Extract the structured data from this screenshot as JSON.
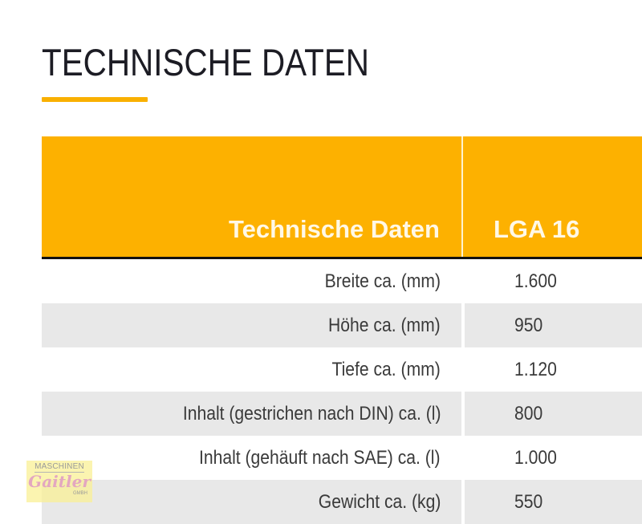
{
  "page": {
    "title": "TECHNISCHE DATEN",
    "accent_color": "#FDB100"
  },
  "table": {
    "headers": {
      "label": "Technische Daten",
      "model": "LGA 16"
    },
    "rows": [
      {
        "label": "Breite ca. (mm)",
        "value": "1.600"
      },
      {
        "label": "Höhe ca. (mm)",
        "value": "950"
      },
      {
        "label": "Tiefe ca. (mm)",
        "value": "1.120"
      },
      {
        "label": "Inhalt (gestrichen nach DIN) ca. (l)",
        "value": "800"
      },
      {
        "label": "Inhalt (gehäuft nach SAE) ca. (l)",
        "value": "1.000"
      },
      {
        "label": "Gewicht ca. (kg)",
        "value": "550"
      }
    ]
  },
  "watermark": {
    "top": "MASCHINEN",
    "middle": "Gaitler",
    "bottom": "GMBH"
  }
}
